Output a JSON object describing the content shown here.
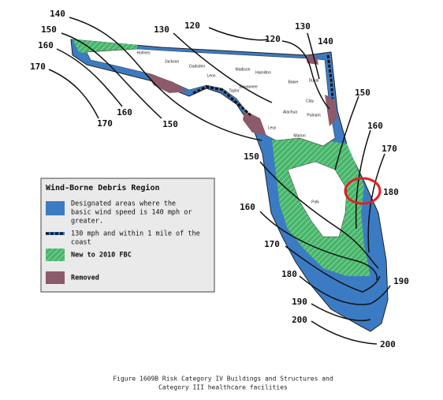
{
  "contour_labels": [
    "140",
    "150",
    "160",
    "170",
    "170",
    "160",
    "150",
    "130",
    "120",
    "120",
    "130",
    "140",
    "150",
    "160",
    "170",
    "180",
    "150",
    "160",
    "170",
    "180",
    "190",
    "200",
    "200",
    "190"
  ],
  "county_labels": [
    "Holmes",
    "Jackson",
    "Gadsden",
    "Leon",
    "Madison",
    "Hamilton",
    "Suwannee",
    "Baker",
    "Duval",
    "Clay",
    "Alachua",
    "Putnam",
    "Marion",
    "Levy",
    "Taylor",
    "Polk"
  ],
  "legend": {
    "title": "Wind-Borne Debris Region",
    "items": [
      [
        "Designated areas where the",
        "basic wind speed is 140 mph or",
        "greater."
      ],
      [
        "130 mph and within 1 mile of the",
        "coast"
      ],
      [
        "New to 2010 FBC"
      ],
      [
        "Removed"
      ]
    ]
  },
  "caption": [
    "Figure 1609B Risk Category IV Buildings and Structures and",
    "Category III healthcare facilities"
  ]
}
